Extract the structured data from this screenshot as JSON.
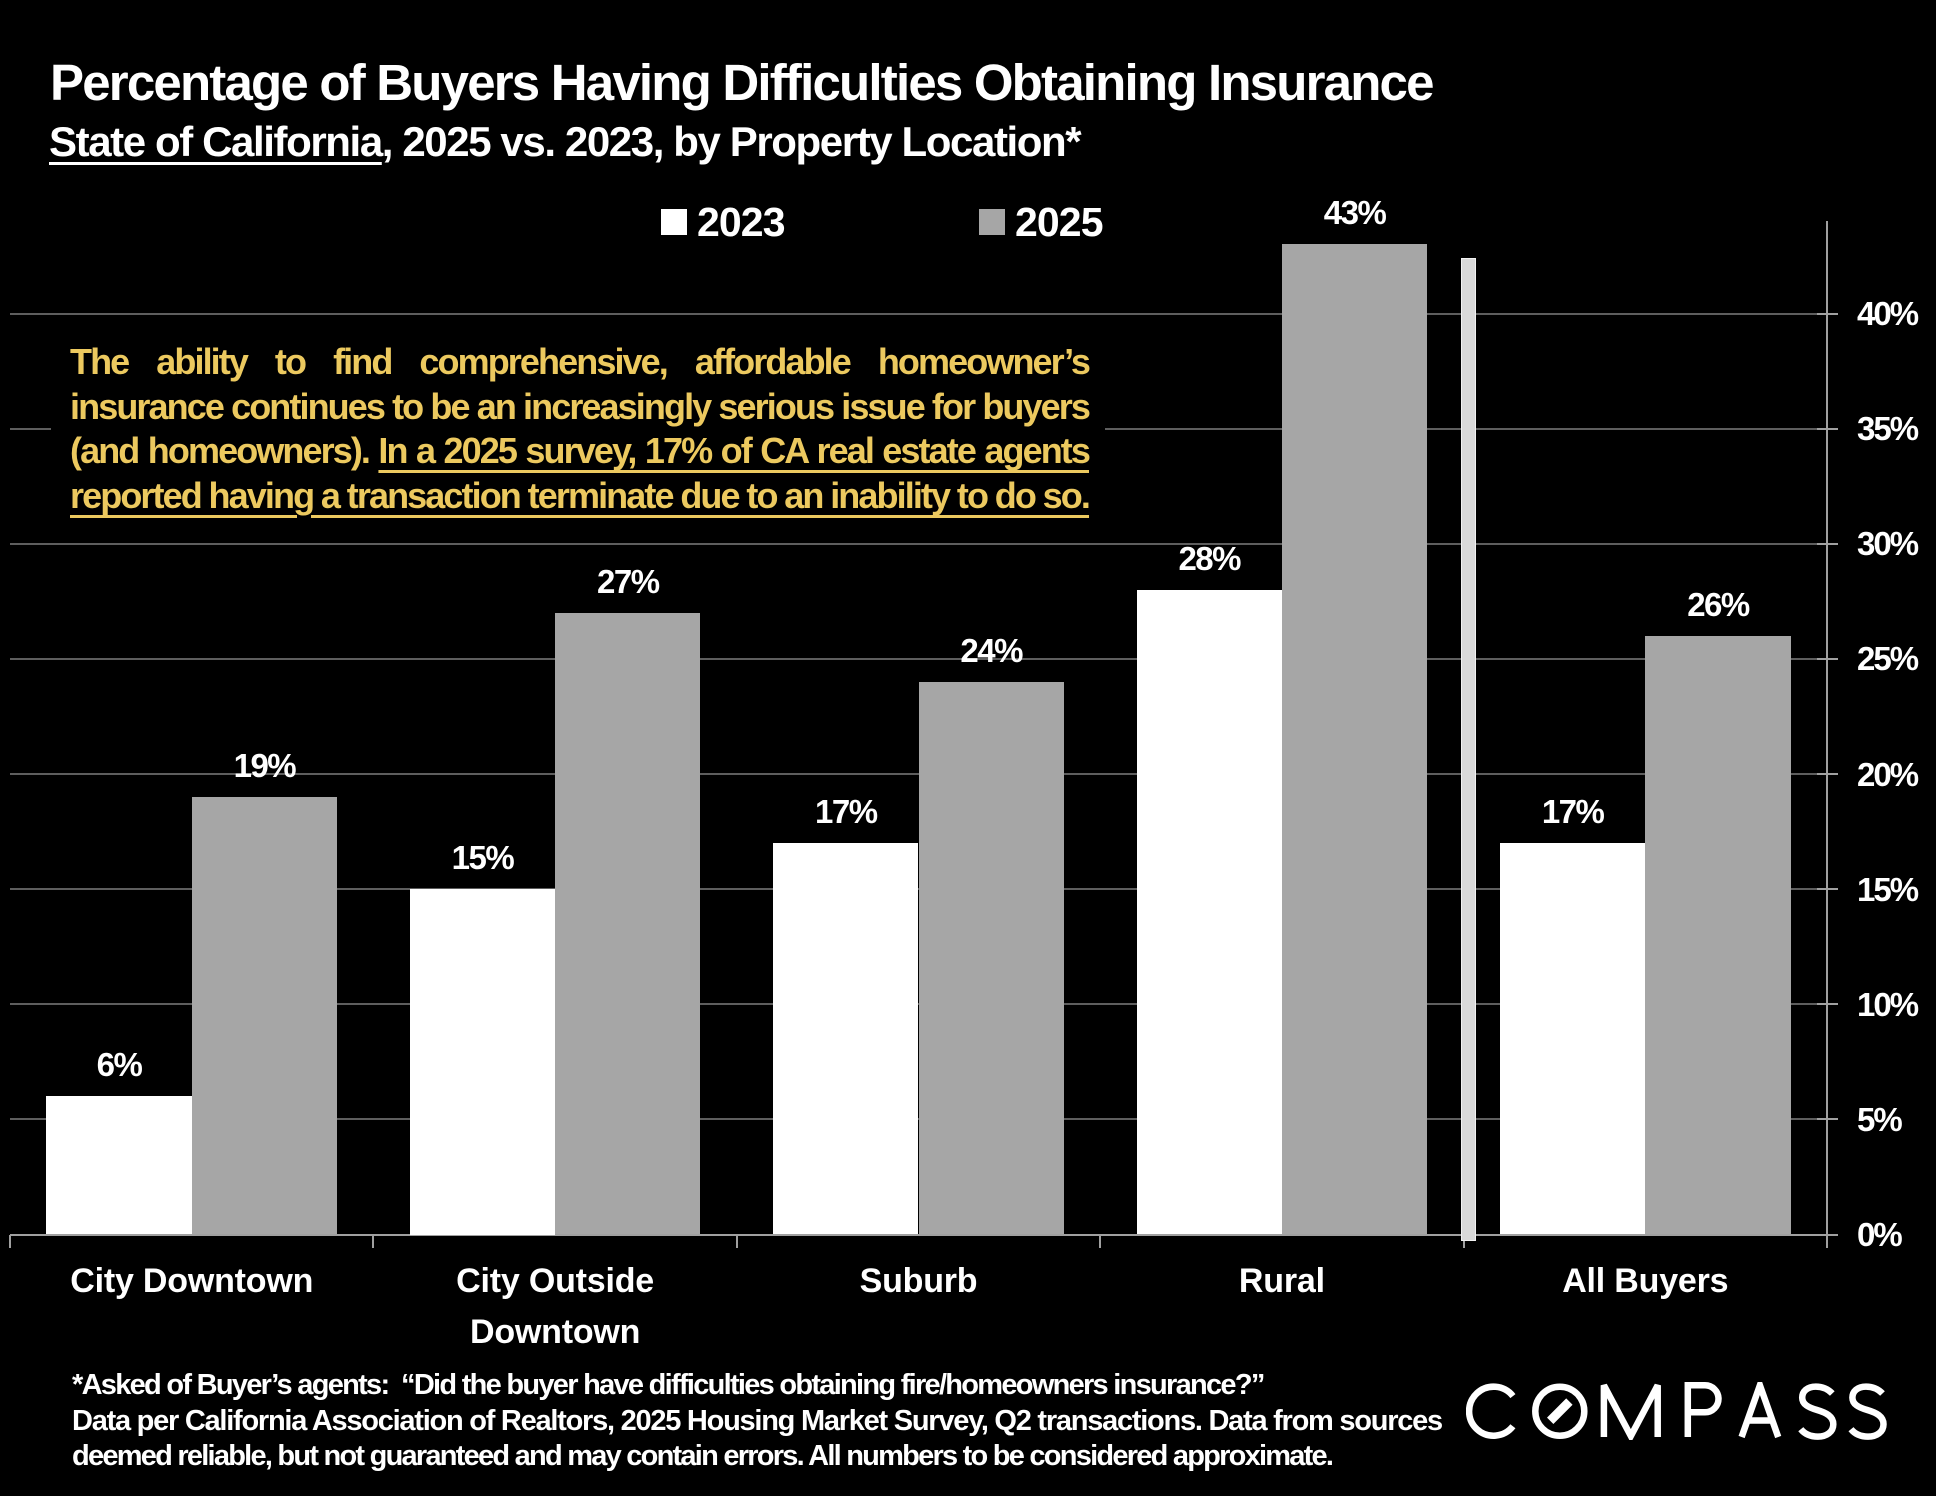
{
  "header": {
    "title": "Percentage of Buyers Having Difficulties Obtaining Insurance",
    "subtitle_underlined": "State of California",
    "subtitle_rest": ", 2025 vs. 2023, by Property Location*"
  },
  "legend": {
    "items": [
      {
        "label": "2023",
        "color": "#ffffff"
      },
      {
        "label": "2025",
        "color": "#a6a6a6"
      }
    ]
  },
  "annotation": {
    "color": "#ecc95f",
    "lines": [
      [
        {
          "text": "The ability to find comprehensive, affordable homeowner’s",
          "underline": false
        }
      ],
      [
        {
          "text": "insurance continues to be an increasingly serious issue for buyers",
          "underline": false
        }
      ],
      [
        {
          "text": "(and homeowners). ",
          "underline": false
        },
        {
          "text": "In a 2025 survey, 17% of CA real estate agents",
          "underline": true
        }
      ],
      [
        {
          "text": "reported having a transaction terminate due to an inability to do so.",
          "underline": true
        }
      ]
    ]
  },
  "chart_data": {
    "type": "bar",
    "title": "Percentage of Buyers Having Difficulties Obtaining Insurance",
    "subtitle": "State of California, 2025 vs. 2023, by Property Location*",
    "categories": [
      "City Downtown",
      "City Outside\nDowntown",
      "Suburb",
      "Rural",
      "All Buyers"
    ],
    "series": [
      {
        "name": "2023",
        "color": "#ffffff",
        "values": [
          6,
          15,
          17,
          28,
          17
        ]
      },
      {
        "name": "2025",
        "color": "#a6a6a6",
        "values": [
          19,
          27,
          24,
          43,
          26
        ]
      }
    ],
    "value_suffix": "%",
    "xlabel": "",
    "ylabel": "",
    "ylim": [
      0,
      44
    ],
    "yticks": [
      0,
      5,
      10,
      15,
      20,
      25,
      30,
      35,
      40
    ],
    "ytick_labels": [
      "0%",
      "5%",
      "10%",
      "15%",
      "20%",
      "25%",
      "30%",
      "35%",
      "40%"
    ],
    "grid": "horizontal",
    "gridline_color": "#5e5e5e",
    "axis_color": "#a0a0a0",
    "legend_position": "top",
    "separator_after_category": "Rural",
    "separator_color": "#d9d9d9"
  },
  "footnote": {
    "lines": [
      "*Asked of Buyer’s agents:  “Did the buyer have difficulties obtaining fire/homeowners insurance?”",
      "Data per California Association of Realtors, 2025 Housing Market Survey, Q2 transactions. Data from sources",
      "deemed reliable, but not guaranteed and may contain errors. All numbers to be considered approximate."
    ]
  },
  "logo": {
    "text": "COMPASS"
  }
}
